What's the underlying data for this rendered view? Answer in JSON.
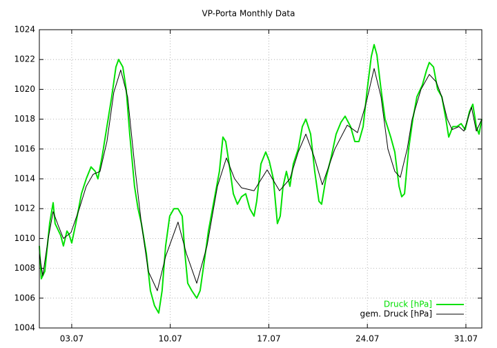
{
  "chart_data": {
    "type": "line",
    "title": "VP-Porta Monthly Data",
    "xlim": [
      0.7,
      32.13
    ],
    "xticks": [
      {
        "value": 3,
        "label": "03.07"
      },
      {
        "value": 10,
        "label": "10.07"
      },
      {
        "value": 17,
        "label": "17.07"
      },
      {
        "value": 24,
        "label": "24.07"
      },
      {
        "value": 31,
        "label": "31.07"
      }
    ],
    "ylim": [
      1004,
      1024
    ],
    "yticks": [
      1004,
      1006,
      1008,
      1010,
      1012,
      1014,
      1016,
      1018,
      1020,
      1022,
      1024
    ],
    "grid": true,
    "legend": "bottom-right",
    "series": [
      {
        "name": "Druck [hPa]",
        "color": "#00e000",
        "x": [
          0.7,
          0.84,
          1.09,
          1.43,
          1.68,
          1.82,
          2.22,
          2.41,
          2.66,
          2.8,
          3.0,
          3.29,
          3.69,
          4.03,
          4.37,
          4.67,
          4.86,
          5.16,
          5.5,
          5.84,
          6.14,
          6.33,
          6.63,
          6.87,
          7.12,
          7.46,
          7.71,
          7.95,
          8.3,
          8.59,
          8.88,
          9.18,
          9.42,
          9.67,
          9.96,
          10.26,
          10.55,
          10.85,
          11.04,
          11.24,
          11.53,
          11.88,
          12.12,
          12.42,
          12.71,
          13.1,
          13.49,
          13.74,
          13.94,
          14.18,
          14.48,
          14.77,
          15.06,
          15.36,
          15.65,
          15.95,
          16.14,
          16.44,
          16.78,
          17.03,
          17.32,
          17.61,
          17.81,
          18.01,
          18.25,
          18.5,
          18.74,
          19.09,
          19.38,
          19.63,
          19.97,
          20.26,
          20.56,
          20.75,
          21.05,
          21.44,
          21.78,
          22.13,
          22.42,
          22.81,
          23.11,
          23.4,
          23.7,
          23.99,
          24.28,
          24.48,
          24.68,
          24.97,
          25.26,
          25.66,
          25.95,
          26.25,
          26.44,
          26.64,
          26.93,
          27.23,
          27.52,
          27.91,
          28.21,
          28.4,
          28.7,
          28.99,
          29.29,
          29.58,
          29.78,
          30.07,
          30.36,
          30.66,
          30.95,
          31.25,
          31.49,
          31.74,
          31.93,
          32.13
        ],
        "values": [
          1009.5,
          1007.3,
          1007.8,
          1011,
          1012.4,
          1011,
          1010.2,
          1009.5,
          1010.5,
          1010.3,
          1009.7,
          1011,
          1013,
          1014,
          1014.8,
          1014.5,
          1014,
          1015.5,
          1017.5,
          1019.5,
          1021.5,
          1022,
          1021.5,
          1020,
          1017,
          1013.5,
          1012,
          1011,
          1009,
          1006.5,
          1005.5,
          1005,
          1006.5,
          1009.5,
          1011.5,
          1012,
          1012,
          1011.5,
          1009,
          1007,
          1006.5,
          1006,
          1006.5,
          1008.5,
          1010.5,
          1012.5,
          1014.5,
          1016.8,
          1016.5,
          1015,
          1013,
          1012.3,
          1012.8,
          1013,
          1012,
          1011.5,
          1012.5,
          1015,
          1015.8,
          1015.2,
          1014,
          1011,
          1011.5,
          1013.5,
          1014.5,
          1013.5,
          1015,
          1016,
          1017.5,
          1018,
          1017,
          1014.5,
          1012.5,
          1012.3,
          1014,
          1015.5,
          1017,
          1017.8,
          1018.2,
          1017.5,
          1016.5,
          1016.5,
          1017.5,
          1020,
          1022.2,
          1023,
          1022.3,
          1020,
          1018,
          1016.8,
          1015.8,
          1013.5,
          1012.8,
          1013,
          1016,
          1018,
          1019.5,
          1020.3,
          1021.3,
          1021.8,
          1021.5,
          1020,
          1019.5,
          1018,
          1016.8,
          1017.5,
          1017.5,
          1017.7,
          1017.3,
          1018.5,
          1019,
          1017.5,
          1017,
          1018
        ]
      },
      {
        "name": "gem. Druck [hPa]",
        "color": "#000000",
        "x": [
          0.7,
          0.94,
          1.33,
          1.68,
          2.07,
          2.41,
          2.95,
          3.54,
          4.03,
          4.52,
          5.01,
          5.5,
          5.99,
          6.48,
          6.97,
          7.46,
          7.95,
          8.44,
          9.08,
          9.67,
          10.55,
          11.14,
          11.88,
          12.61,
          13.35,
          13.99,
          14.57,
          15.06,
          15.95,
          16.88,
          17.76,
          18.5,
          19.09,
          19.63,
          20.21,
          20.8,
          21.69,
          22.57,
          23.3,
          23.89,
          24.48,
          24.97,
          25.46,
          25.95,
          26.34,
          26.83,
          27.18,
          27.81,
          28.4,
          28.89,
          29.29,
          29.68,
          30.02,
          30.51,
          30.86,
          31.4,
          31.74,
          32.13
        ],
        "values": [
          1009,
          1007.5,
          1010,
          1011.8,
          1010.8,
          1010,
          1010.4,
          1012,
          1013.5,
          1014.3,
          1014.5,
          1016.5,
          1019.8,
          1021.3,
          1019.5,
          1015,
          1011,
          1007.8,
          1006.5,
          1008.8,
          1011.1,
          1009,
          1007,
          1009.5,
          1013.5,
          1015.4,
          1014,
          1013.4,
          1013.2,
          1014.6,
          1013.2,
          1014,
          1015.8,
          1017,
          1015.5,
          1013.6,
          1016,
          1017.6,
          1017.1,
          1019,
          1021.4,
          1019.5,
          1016,
          1014.5,
          1014.1,
          1016,
          1018,
          1020,
          1021,
          1020.5,
          1019.5,
          1018,
          1017.3,
          1017.5,
          1017.2,
          1018.8,
          1017.2,
          1018
        ]
      }
    ]
  }
}
